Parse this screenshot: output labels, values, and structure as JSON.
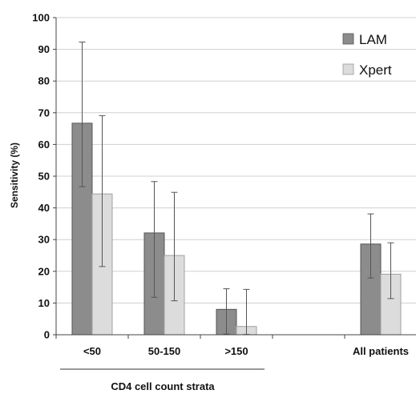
{
  "chart_data": {
    "type": "bar",
    "title": "",
    "ylabel": "Sensitivity (%)",
    "xlabel": "",
    "group_label": "CD4 cell count strata",
    "ylim": [
      0,
      100
    ],
    "yticks": [
      0,
      10,
      20,
      30,
      40,
      50,
      60,
      70,
      80,
      90,
      100
    ],
    "grid": "horizontal",
    "legend_position": "top-right",
    "categories": [
      "<50",
      "50-150",
      ">150",
      "",
      "All patients"
    ],
    "series": [
      {
        "name": "LAM",
        "color": "#8c8c8c",
        "values": [
          66.7,
          32.1,
          8.0,
          null,
          28.6
        ],
        "error_low": [
          46.7,
          11.8,
          0.2,
          null,
          17.9
        ],
        "error_high": [
          92.3,
          48.3,
          14.5,
          null,
          38.1
        ]
      },
      {
        "name": "Xpert",
        "color": "#dcdcdc",
        "values": [
          44.4,
          25.0,
          2.6,
          null,
          19.1
        ],
        "error_low": [
          21.5,
          10.7,
          0.1,
          null,
          11.4
        ],
        "error_high": [
          69.1,
          44.9,
          14.3,
          null,
          29.0
        ]
      }
    ]
  }
}
